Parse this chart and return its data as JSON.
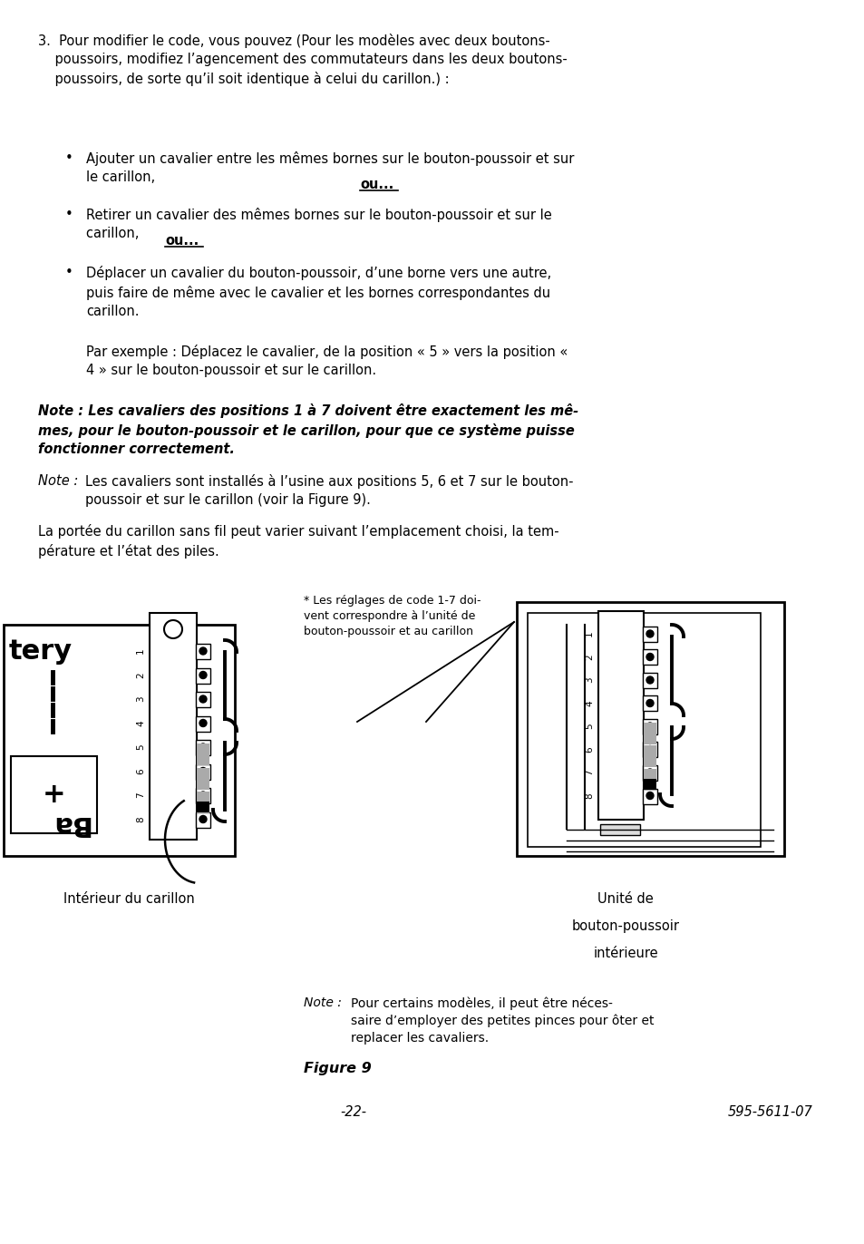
{
  "bg_color": "#ffffff",
  "text_color": "#000000",
  "label_left": "Intérieur du carillon",
  "label_right_line1": "Unité de",
  "label_right_line2": "bouton-poussoir",
  "label_right_line3": "intérieure",
  "figure_label": "Figure 9",
  "page_num": "-22-",
  "doc_num": "595-5611-07"
}
